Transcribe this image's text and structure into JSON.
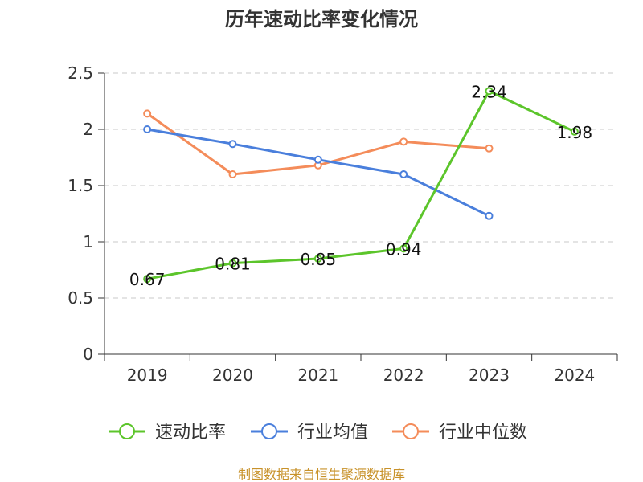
{
  "chart_data": {
    "type": "line",
    "title": "历年速动比率变化情况",
    "categories": [
      "2019",
      "2020",
      "2021",
      "2022",
      "2023",
      "2024"
    ],
    "ylim": [
      0,
      2.5
    ],
    "yticks": [
      "0",
      "0.5",
      "1",
      "1.5",
      "2",
      "2.5"
    ],
    "ytick_values": [
      0,
      0.5,
      1,
      1.5,
      2,
      2.5
    ],
    "grid": true,
    "legend_position": "bottom",
    "series": [
      {
        "name": "速动比率",
        "color": "#5cc52b",
        "values": [
          0.67,
          0.81,
          0.85,
          0.94,
          2.34,
          1.98
        ],
        "labels": [
          "0.67",
          "0.81",
          "0.85",
          "0.94",
          "2.34",
          "1.98"
        ]
      },
      {
        "name": "行业均值",
        "color": "#4a7fdc",
        "values": [
          2.0,
          1.87,
          1.73,
          1.6,
          1.23,
          null
        ]
      },
      {
        "name": "行业中位数",
        "color": "#f48c5a",
        "values": [
          2.14,
          1.6,
          1.68,
          1.89,
          1.83,
          null
        ]
      }
    ]
  },
  "footer": {
    "source": "制图数据来自恒生聚源数据库"
  }
}
